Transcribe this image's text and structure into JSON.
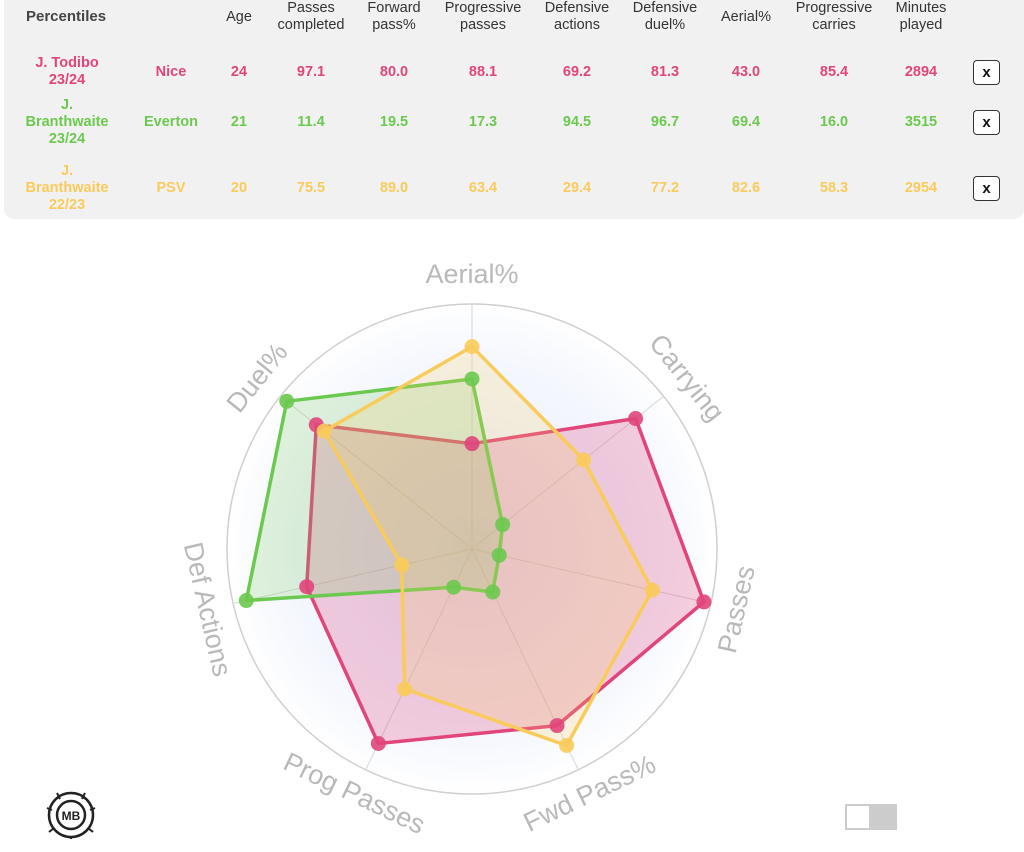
{
  "table": {
    "title": "Percentiles",
    "headers": [
      "Age",
      "Passes\ncompleted",
      "Forward\npass%",
      "Progressive\npasses",
      "Defensive\nactions",
      "Defensive\nduel%",
      "Aerial%",
      "Progressive\ncarries",
      "Minutes\nplayed"
    ],
    "rows": [
      {
        "name": "J. Todibo\n23/24",
        "team": "Nice",
        "color": "#e0457b",
        "values": [
          "24",
          "97.1",
          "80.0",
          "88.1",
          "69.2",
          "81.3",
          "43.0",
          "85.4",
          "2894"
        ],
        "remove_label": "x"
      },
      {
        "name": "J.\nBranthwaite\n23/24",
        "team": "Everton",
        "color": "#6cc94f",
        "values": [
          "21",
          "11.4",
          "19.5",
          "17.3",
          "94.5",
          "96.7",
          "69.4",
          "16.0",
          "3515"
        ],
        "remove_label": "x"
      },
      {
        "name": "J.\nBranthwaite\n22/23",
        "team": "PSV",
        "color": "#f9cb5a",
        "values": [
          "20",
          "75.5",
          "89.0",
          "63.4",
          "29.4",
          "77.2",
          "82.6",
          "58.3",
          "2954"
        ],
        "remove_label": "x"
      }
    ]
  },
  "chart_data": {
    "type": "radar",
    "axes": [
      "Aerial%",
      "Carrying",
      "Passes",
      "Fwd Pass%",
      "Prog Passes",
      "Def Actions",
      "Duel%"
    ],
    "range": [
      0,
      100
    ],
    "series": [
      {
        "values": [
          43.0,
          85.4,
          97.1,
          80.0,
          88.1,
          69.2,
          81.3
        ],
        "color": "#e0457b",
        "fill_opacity": 0.25
      },
      {
        "values": [
          69.4,
          16.0,
          11.4,
          19.5,
          17.3,
          94.5,
          96.7
        ],
        "color": "#6cc94f",
        "fill_opacity": 0.2
      },
      {
        "values": [
          82.6,
          58.3,
          75.5,
          89.0,
          63.4,
          29.4,
          77.2
        ],
        "color": "#f9cb5a",
        "fill_opacity": 0.2
      }
    ]
  },
  "logo": {
    "text": "MB",
    "icon": "mb-logo-icon"
  },
  "toggle": {
    "state": "off"
  }
}
